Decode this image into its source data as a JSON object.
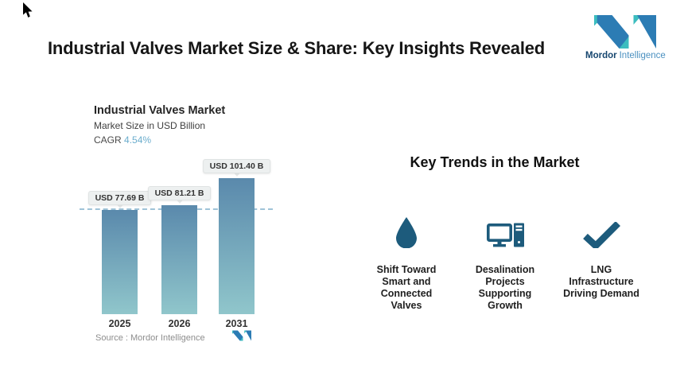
{
  "header": {
    "title": "Industrial Valves Market Size & Share: Key Insights Revealed",
    "logo": {
      "primary": "Mordor",
      "secondary": "Intelligence"
    }
  },
  "chart_data": {
    "type": "bar",
    "title": "Industrial Valves Market",
    "subtitle": "Market Size in USD Billion",
    "cagr_label": "CAGR",
    "cagr_value": "4.54%",
    "categories": [
      "2025",
      "2026",
      "2031"
    ],
    "values": [
      77.69,
      81.21,
      101.4
    ],
    "value_labels": [
      "USD 77.69 B",
      "USD 81.21 B",
      "USD 101.40 B"
    ],
    "ylabel": "Market Size in USD Billion",
    "ylim": [
      0,
      120
    ],
    "grid": "off",
    "legend": "none",
    "baseline_value": 77.69,
    "source": "Source : Mordor Intelligence",
    "colors": {
      "bar_gradient_top": "#5a89ac",
      "bar_gradient_bottom": "#90c6cb",
      "dashed_line": "#9fc3d8",
      "cagr_value": "#6badcd",
      "value_pill_bg": "#edf0f0"
    }
  },
  "trends": {
    "heading": "Key Trends in the Market",
    "icon_color": "#1d5b7c",
    "items": [
      {
        "icon": "water-drop-icon",
        "label": "Shift Toward\nSmart and\nConnected\nValves"
      },
      {
        "icon": "desktop-computer-icon",
        "label": "Desalination\nProjects\nSupporting\nGrowth"
      },
      {
        "icon": "checkmark-icon",
        "label": "LNG\nInfrastructure\nDriving Demand"
      }
    ]
  },
  "brand_colors": {
    "dark_blue": "#2c7cb4",
    "teal": "#3cbdbf"
  }
}
